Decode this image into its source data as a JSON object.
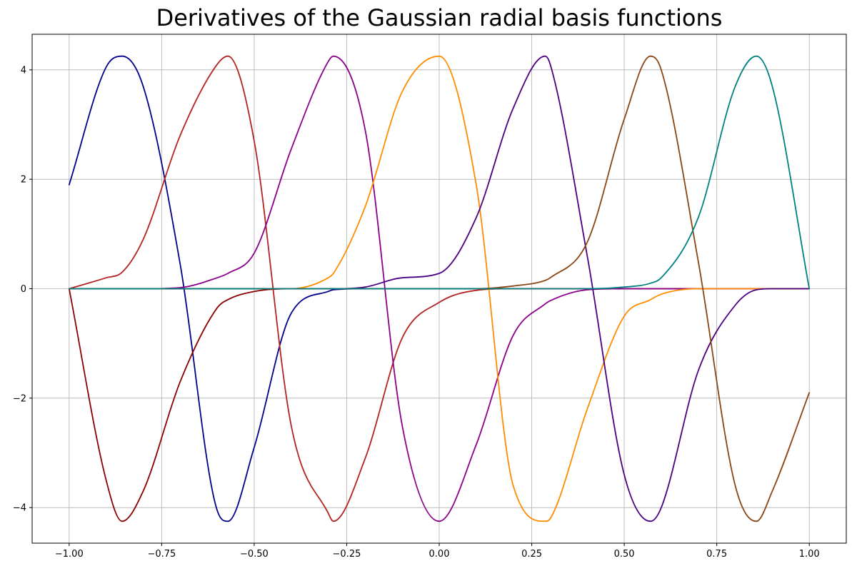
{
  "chart_data": {
    "type": "line",
    "title": "Derivatives of the Gaussian radial basis functions",
    "xlabel": "",
    "ylabel": "",
    "xlim": [
      -1.1,
      1.1
    ],
    "ylim": [
      -4.65,
      4.65
    ],
    "grid": true,
    "legend": "none",
    "x_ticks": [
      -1.0,
      -0.75,
      -0.5,
      -0.25,
      0.0,
      0.25,
      0.5,
      0.75,
      1.0
    ],
    "x_tick_labels": [
      "−1.00",
      "−0.75",
      "−0.50",
      "−0.25",
      "0.00",
      "0.25",
      "0.50",
      "0.75",
      "1.00"
    ],
    "y_ticks": [
      -4,
      -2,
      0,
      2,
      4
    ],
    "y_tick_labels": [
      "−4",
      "−2",
      "0",
      "2",
      "4"
    ],
    "x": [
      -1.0,
      -0.9,
      -0.857,
      -0.8,
      -0.7,
      -0.6,
      -0.571,
      -0.5,
      -0.4,
      -0.3,
      -0.286,
      -0.2,
      -0.1,
      0.0,
      0.1,
      0.2,
      0.286,
      0.3,
      0.4,
      0.5,
      0.571,
      0.6,
      0.7,
      0.8,
      0.857,
      0.9,
      1.0
    ],
    "series": [
      {
        "color": "#00008b",
        "values": [
          1.9,
          4.05,
          4.25,
          3.7,
          0.45,
          -4.05,
          -4.25,
          -2.9,
          -0.45,
          -0.05,
          -0.02,
          0.0,
          0.0,
          0.0,
          0.0,
          0.0,
          0.0,
          0.0,
          0.0,
          0.0,
          0.0,
          0.0,
          0.0,
          0.0,
          0.0,
          0.0,
          0.0
        ]
      },
      {
        "color": "#8b0000",
        "values": [
          0.0,
          -3.5,
          -4.25,
          -3.7,
          -1.7,
          -0.35,
          -0.2,
          -0.05,
          0.0,
          0.0,
          0.0,
          0.0,
          0.0,
          0.0,
          0.0,
          0.0,
          0.0,
          0.0,
          0.0,
          0.0,
          0.0,
          0.0,
          0.0,
          0.0,
          0.0,
          0.0,
          0.0
        ]
      },
      {
        "color": "#b22222",
        "values": [
          0.0,
          0.2,
          0.3,
          0.9,
          2.8,
          4.1,
          4.25,
          2.7,
          -2.5,
          -4.1,
          -4.25,
          -3.1,
          -0.9,
          -0.25,
          -0.03,
          0.0,
          0.0,
          0.0,
          0.0,
          0.0,
          0.0,
          0.0,
          0.0,
          0.0,
          0.0,
          0.0,
          0.0
        ]
      },
      {
        "color": "#8b008b",
        "values": [
          0.0,
          0.0,
          0.0,
          0.0,
          0.02,
          0.2,
          0.28,
          0.65,
          2.55,
          4.15,
          4.25,
          2.9,
          -2.5,
          -4.25,
          -2.85,
          -0.85,
          -0.28,
          -0.22,
          -0.02,
          0.0,
          0.0,
          0.0,
          0.0,
          0.0,
          0.0,
          0.0,
          0.0
        ]
      },
      {
        "color": "#ff8c00",
        "values": [
          0.0,
          0.0,
          0.0,
          0.0,
          0.0,
          0.0,
          0.0,
          0.0,
          0.0,
          0.2,
          0.28,
          1.5,
          3.6,
          4.25,
          1.9,
          -3.6,
          -4.25,
          -4.2,
          -2.2,
          -0.5,
          -0.2,
          -0.1,
          0.0,
          0.0,
          0.0,
          0.0,
          0.0
        ]
      },
      {
        "color": "#4b0082",
        "values": [
          0.0,
          0.0,
          0.0,
          0.0,
          0.0,
          0.0,
          0.0,
          0.0,
          0.0,
          0.0,
          0.0,
          0.03,
          0.2,
          0.28,
          1.3,
          3.3,
          4.25,
          4.1,
          0.6,
          -3.4,
          -4.25,
          -4.0,
          -1.5,
          -0.3,
          -0.02,
          0.0,
          0.0
        ]
      },
      {
        "color": "#8b4513",
        "values": [
          0.0,
          0.0,
          0.0,
          0.0,
          0.0,
          0.0,
          0.0,
          0.0,
          0.0,
          0.0,
          0.0,
          0.0,
          0.0,
          0.0,
          0.0,
          0.05,
          0.15,
          0.2,
          0.85,
          3.1,
          4.25,
          4.0,
          0.5,
          -3.6,
          -4.25,
          -3.7,
          -1.9
        ]
      },
      {
        "color": "#008080",
        "values": [
          0.0,
          0.0,
          0.0,
          0.0,
          0.0,
          0.0,
          0.0,
          0.0,
          0.0,
          0.0,
          0.0,
          0.0,
          0.0,
          0.0,
          0.0,
          0.0,
          0.0,
          0.0,
          0.0,
          0.03,
          0.1,
          0.2,
          1.3,
          3.7,
          4.25,
          3.7,
          0.0
        ]
      }
    ]
  }
}
